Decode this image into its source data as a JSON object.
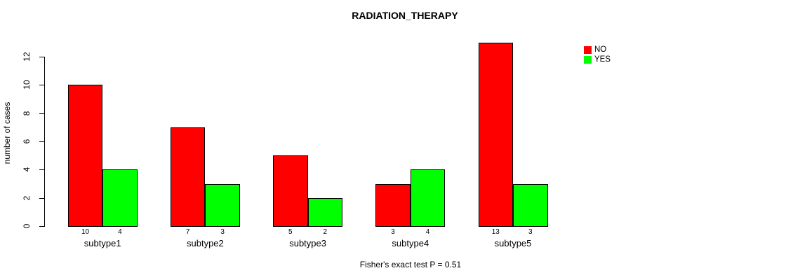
{
  "chart_data": {
    "type": "bar",
    "title": "RADIATION_THERAPY",
    "categories": [
      "subtype1",
      "subtype2",
      "subtype3",
      "subtype4",
      "subtype5"
    ],
    "series": [
      {
        "name": "NO",
        "color": "#FF0000",
        "values": [
          10,
          7,
          5,
          3,
          13
        ]
      },
      {
        "name": "YES",
        "color": "#00FF00",
        "values": [
          4,
          3,
          2,
          4,
          3
        ]
      }
    ],
    "xlabel": "",
    "ylabel": "number of cases",
    "ylim": [
      0,
      13
    ],
    "yticks": [
      0,
      2,
      4,
      6,
      8,
      10,
      12
    ],
    "grid": false,
    "bar_value_labels": true,
    "bar_border_color": "#000000",
    "legend": {
      "position": "top-right",
      "entries": [
        "NO",
        "YES"
      ]
    },
    "annotation": "Fisher's exact test P = 0.51"
  }
}
